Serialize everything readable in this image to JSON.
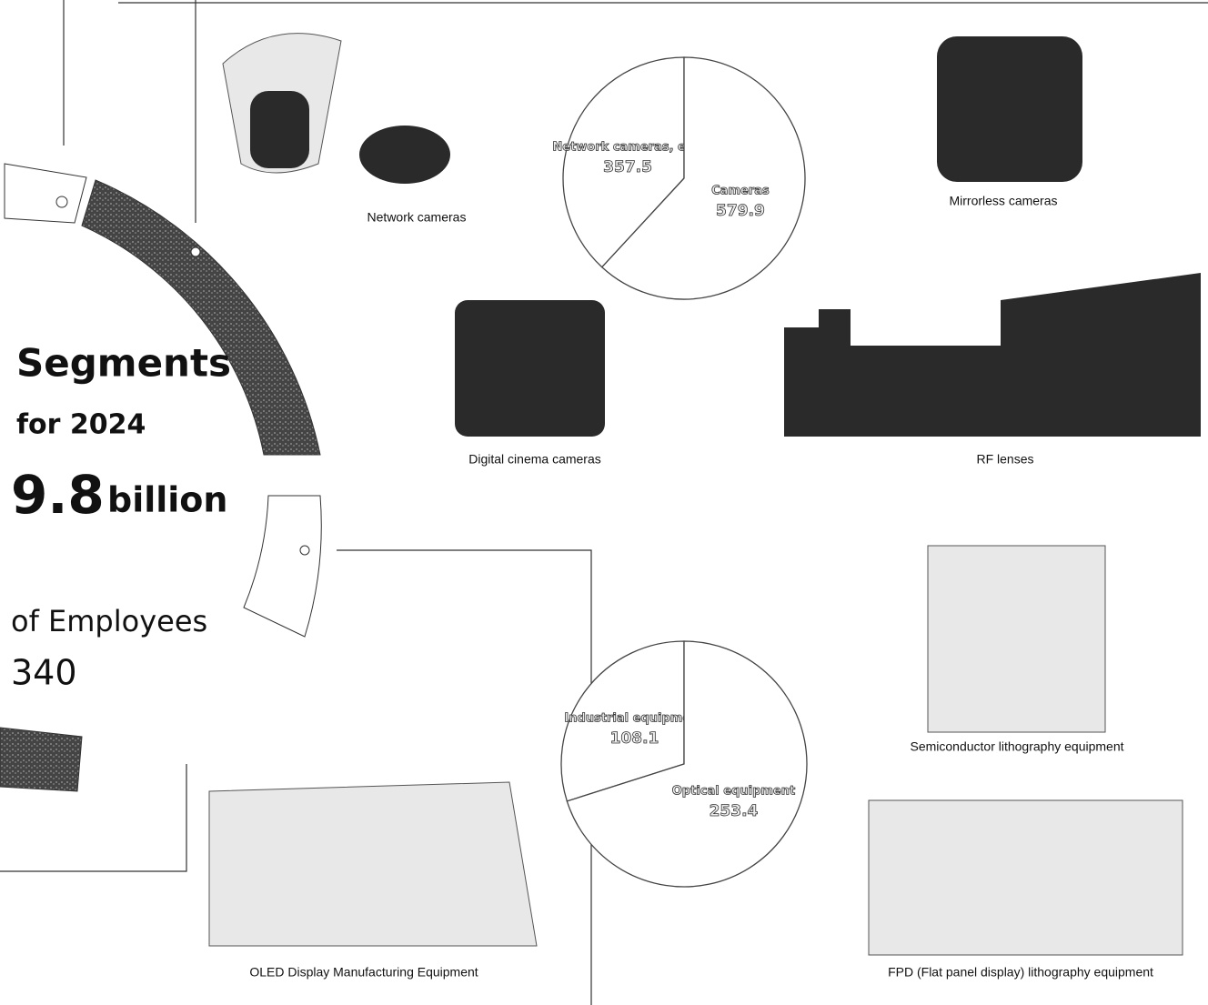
{
  "document": {
    "heading": "Segments",
    "subheading": "for 2024",
    "figure": "9.8",
    "unit": "billion",
    "employees_label": "of Employees",
    "employees_value": "340",
    "captions": [
      "Network cameras",
      "Mirrorless cameras",
      "Digital cinema cameras",
      "RF lenses",
      "Semiconductor lithography equipment",
      "OLED Display Manufacturing Equipment",
      "FPD (Flat panel display) lithography equipment"
    ]
  },
  "chart_data": [
    {
      "type": "pie",
      "categories": [
        "Network cameras, etc.",
        "Cameras"
      ],
      "values": [
        357.5,
        579.9
      ]
    },
    {
      "type": "pie",
      "categories": [
        "Industrial equipment",
        "Optical equipment"
      ],
      "values": [
        108.1,
        253.4
      ]
    }
  ]
}
